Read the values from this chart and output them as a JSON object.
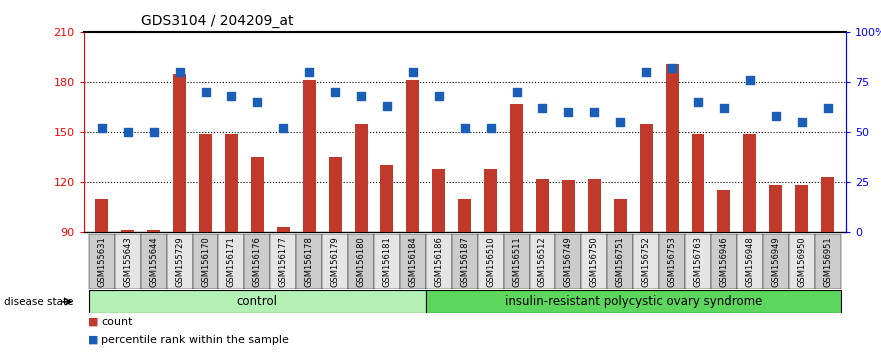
{
  "title": "GDS3104 / 204209_at",
  "samples": [
    "GSM155631",
    "GSM155643",
    "GSM155644",
    "GSM155729",
    "GSM156170",
    "GSM156171",
    "GSM156176",
    "GSM156177",
    "GSM156178",
    "GSM156179",
    "GSM156180",
    "GSM156181",
    "GSM156184",
    "GSM156186",
    "GSM156187",
    "GSM156510",
    "GSM156511",
    "GSM156512",
    "GSM156749",
    "GSM156750",
    "GSM156751",
    "GSM156752",
    "GSM156753",
    "GSM156763",
    "GSM156946",
    "GSM156948",
    "GSM156949",
    "GSM156950",
    "GSM156951"
  ],
  "counts": [
    110,
    91,
    91,
    185,
    149,
    149,
    135,
    93,
    181,
    135,
    155,
    130,
    181,
    128,
    110,
    128,
    167,
    122,
    121,
    122,
    110,
    155,
    191,
    149,
    115,
    149,
    118,
    118,
    123
  ],
  "percentiles": [
    52,
    50,
    50,
    80,
    70,
    68,
    65,
    52,
    80,
    70,
    68,
    63,
    80,
    68,
    52,
    52,
    70,
    62,
    60,
    60,
    55,
    80,
    82,
    65,
    62,
    76,
    58,
    55,
    62
  ],
  "control_count": 13,
  "group1_label": "control",
  "group2_label": "insulin-resistant polycystic ovary syndrome",
  "bar_color": "#c0392b",
  "scatter_color": "#1a5eb8",
  "ylim_left": [
    90,
    210
  ],
  "ylim_right": [
    0,
    100
  ],
  "yticks_left": [
    90,
    120,
    150,
    180,
    210
  ],
  "yticks_right": [
    0,
    25,
    50,
    75,
    100
  ],
  "ytick_labels_right": [
    "0",
    "25",
    "50",
    "75",
    "100%"
  ],
  "control_bg": "#b3f0b3",
  "disease_bg": "#5cd65c",
  "disease_state_label": "disease state"
}
